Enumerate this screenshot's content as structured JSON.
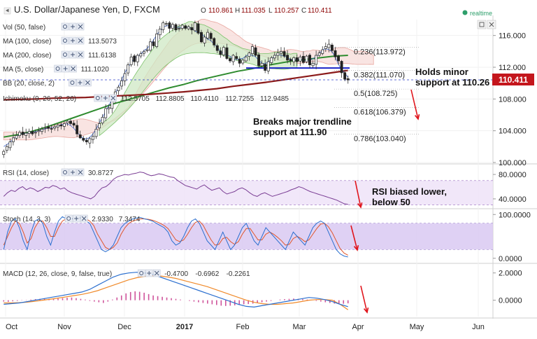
{
  "header": {
    "title": "U.S. Dollar/Japanese Yen, D, FXCM",
    "ohlc": {
      "o_label": "O",
      "o": "110.861",
      "h_label": "H",
      "h": "111.035",
      "l_label": "L",
      "l": "110.257",
      "c_label": "C",
      "c": "110.411"
    },
    "realtime_label": "realtime"
  },
  "indicators": [
    {
      "label": "Vol (50, false)",
      "value": ""
    },
    {
      "label": "MA (100, close)",
      "value": "113.5073"
    },
    {
      "label": "MA (200, close)",
      "value": "111.6138"
    },
    {
      "label": "MA (5, close)",
      "value": "111.1020"
    },
    {
      "label": "BB (20, close, 2)",
      "value": ""
    },
    {
      "label": "Ichimoku (9, 26, 52, 26)",
      "values": [
        "112.5705",
        "112.8805",
        "110.4110",
        "112.7255",
        "112.9485"
      ]
    }
  ],
  "price_badge": "110.411",
  "chart_data": [
    {
      "type": "candlestick",
      "panel": "price",
      "title": "U.S. Dollar/Japanese Yen, D, FXCM",
      "x_ticks": [
        "Oct",
        "Nov",
        "Dec",
        "2017",
        "Feb",
        "Mar",
        "Apr",
        "May",
        "Jun"
      ],
      "y_ticks": [
        "100.000",
        "104.000",
        "108.000",
        "112.000",
        "116.000"
      ],
      "ylim": [
        100,
        118
      ],
      "closes": [
        101.4,
        102.0,
        102.6,
        103.1,
        103.4,
        103.8,
        103.5,
        103.7,
        103.9,
        103.6,
        103.8,
        104.0,
        104.2,
        104.4,
        104.3,
        104.2,
        104.5,
        104.7,
        104.6,
        104.9,
        105.2,
        104.9,
        104.7,
        103.6,
        103.1,
        102.8,
        102.6,
        103.0,
        103.3,
        104.2,
        104.9,
        105.7,
        106.8,
        106.9,
        107.8,
        108.9,
        109.5,
        110.3,
        111.2,
        112.3,
        113.3,
        112.7,
        113.5,
        113.7,
        114.0,
        114.2,
        115.2,
        114.7,
        116.2,
        116.8,
        117.6,
        117.5,
        116.9,
        117.4,
        116.7,
        116.9,
        117.3,
        116.9,
        117.1,
        116.7,
        117.6,
        116.3,
        115.2,
        115.8,
        116.4,
        115.6,
        114.8,
        114.1,
        113.6,
        114.5,
        113.1,
        112.8,
        113.5,
        113.1,
        112.5,
        112.9,
        113.3,
        113.8,
        114.6,
        113.5,
        112.2,
        112.5,
        111.6,
        112.7,
        113.2,
        113.5,
        113.8,
        114.0,
        113.4,
        112.9,
        112.8,
        113.2,
        112.7,
        113.3,
        112.6,
        113.4,
        112.3,
        112.5,
        113.5,
        113.8,
        114.2,
        114.6,
        114.9,
        114.1,
        113.3,
        112.8,
        111.3,
        110.5,
        110.4
      ],
      "ma100": [
        103.2,
        103.5,
        103.9,
        104.4,
        105.0,
        105.6,
        106.2,
        106.8,
        107.4,
        107.9,
        108.4,
        108.9,
        109.4,
        109.8,
        110.3,
        110.7,
        111.1,
        111.5,
        111.8,
        112.2,
        112.5,
        112.8,
        113.0,
        113.2,
        113.4,
        113.5
      ],
      "ma200": [
        107.9,
        107.95,
        108.0,
        108.1,
        108.15,
        108.2,
        108.3,
        108.4,
        108.5,
        108.6,
        108.75,
        108.9,
        109.1,
        109.3,
        109.6,
        109.85,
        110.1,
        110.4,
        110.7,
        111.0,
        111.3,
        111.6
      ],
      "ma200_x_range": [
        "Sep",
        "Mar"
      ],
      "fib_levels": [
        {
          "label": "0.236(113.972)",
          "price": 113.972
        },
        {
          "label": "0.382(111.070)",
          "price": 111.07
        },
        {
          "label": "0.5(108.725)",
          "price": 108.725
        },
        {
          "label": "0.618(106.379)",
          "price": 106.379
        },
        {
          "label": "0.786(103.040)",
          "price": 103.04
        }
      ],
      "trendline": {
        "price": 111.9
      },
      "annotations": [
        {
          "text": [
            "Holds minor",
            "support at 110.26"
          ]
        },
        {
          "text": [
            "Breaks major trendline",
            "support at 111.90"
          ]
        }
      ],
      "current_price": 110.411
    },
    {
      "type": "line",
      "panel": "rsi",
      "legend": "RSI (14, close)",
      "value_label": "30.8727",
      "y_ticks": [
        "40.0000",
        "80.0000"
      ],
      "ylim": [
        25,
        95
      ],
      "bands": [
        30,
        70
      ],
      "values": [
        44,
        50,
        54,
        52,
        57,
        60,
        55,
        58,
        56,
        52,
        55,
        59,
        58,
        62,
        60,
        56,
        58,
        53,
        50,
        48,
        46,
        44,
        42,
        40,
        44,
        52,
        58,
        60,
        65,
        72,
        76,
        78,
        80,
        79,
        81,
        82,
        84,
        83,
        80,
        78,
        79,
        81,
        80,
        78,
        76,
        75,
        70,
        66,
        62,
        60,
        58,
        56,
        60,
        63,
        58,
        54,
        56,
        58,
        52,
        48,
        50,
        52,
        56,
        58,
        55,
        50,
        46,
        44,
        48,
        50,
        47,
        44,
        46,
        48,
        50,
        52,
        55,
        57,
        60,
        58,
        55,
        52,
        50,
        48,
        46,
        44,
        42,
        40,
        38,
        35,
        32,
        31
      ],
      "annotation": [
        "RSI biased lower,",
        "below 50"
      ]
    },
    {
      "type": "line",
      "panel": "stochastic",
      "legend": "Stoch (14, 3, 3)",
      "value_labels": [
        "2.9330",
        "7.3474"
      ],
      "y_ticks": [
        "0.0000",
        "100.0000"
      ],
      "ylim": [
        -10,
        110
      ],
      "bands": [
        20,
        80
      ],
      "k": [
        20,
        60,
        85,
        90,
        70,
        40,
        20,
        60,
        85,
        90,
        80,
        50,
        30,
        60,
        85,
        95,
        90,
        88,
        92,
        95,
        90,
        85,
        80,
        60,
        40,
        20,
        15,
        20,
        30,
        50,
        70,
        80,
        85,
        90,
        92,
        93,
        90,
        88,
        85,
        80,
        75,
        70,
        60,
        40,
        30,
        35,
        50,
        70,
        85,
        90,
        80,
        60,
        40,
        30,
        20,
        40,
        60,
        40,
        20,
        30,
        50,
        70,
        80,
        60,
        40,
        30,
        50,
        70,
        60,
        50,
        40,
        30,
        20,
        40,
        60,
        50,
        40,
        30,
        50,
        70,
        80,
        85,
        80,
        60,
        40,
        20,
        10,
        5,
        3
      ],
      "d": [
        30,
        50,
        70,
        85,
        80,
        60,
        35,
        45,
        70,
        85,
        85,
        70,
        50,
        50,
        70,
        85,
        90,
        90,
        90,
        92,
        92,
        90,
        85,
        75,
        55,
        40,
        25,
        20,
        25,
        35,
        55,
        70,
        80,
        85,
        88,
        90,
        90,
        89,
        87,
        84,
        80,
        75,
        68,
        55,
        42,
        38,
        42,
        55,
        70,
        82,
        85,
        75,
        58,
        42,
        30,
        32,
        45,
        48,
        38,
        32,
        38,
        55,
        68,
        68,
        55,
        42,
        42,
        55,
        60,
        55,
        48,
        40,
        30,
        32,
        45,
        50,
        45,
        38,
        42,
        55,
        68,
        78,
        80,
        72,
        58,
        40,
        22,
        12,
        7
      ]
    },
    {
      "type": "bar",
      "panel": "macd",
      "legend": "MACD (12, 26, close, 9, false, true)",
      "value_labels": [
        "-0.4700",
        "-0.6962",
        "-0.2261"
      ],
      "y_ticks": [
        "0.0000",
        "2.0000"
      ],
      "ylim": [
        -1.2,
        2.6
      ],
      "histogram": [
        -0.1,
        -0.12,
        -0.08,
        -0.05,
        -0.02,
        0.02,
        0.05,
        0.08,
        0.1,
        0.12,
        0.1,
        0.08,
        0.12,
        0.15,
        0.18,
        0.2,
        0.15,
        0.1,
        0.05,
        -0.05,
        -0.1,
        -0.15,
        -0.2,
        -0.1,
        0.05,
        0.2,
        0.35,
        0.5,
        0.6,
        0.65,
        0.62,
        0.55,
        0.45,
        0.35,
        0.3,
        0.25,
        0.2,
        0.15,
        0.1,
        0.05,
        0.0,
        -0.05,
        -0.1,
        -0.15,
        -0.2,
        -0.25,
        -0.3,
        -0.35,
        -0.4,
        -0.42,
        -0.4,
        -0.38,
        -0.35,
        -0.3,
        -0.28,
        -0.25,
        -0.2,
        -0.15,
        -0.1,
        -0.05,
        0.0,
        0.05,
        0.08,
        0.1,
        0.12,
        0.1,
        0.08,
        0.05,
        0.0,
        -0.05,
        -0.1,
        -0.15,
        -0.2,
        -0.25,
        -0.28,
        -0.26,
        -0.23
      ],
      "macd_line": [
        -0.3,
        -0.25,
        -0.2,
        -0.1,
        0.0,
        0.1,
        0.2,
        0.3,
        0.4,
        0.5,
        0.6,
        0.8,
        1.1,
        1.4,
        1.7,
        1.9,
        2.0,
        2.05,
        2.0,
        1.9,
        1.7,
        1.5,
        1.3,
        1.1,
        0.9,
        0.7,
        0.5,
        0.3,
        0.1,
        -0.1,
        -0.3,
        -0.45,
        -0.5,
        -0.4,
        -0.3,
        -0.2,
        -0.1,
        0.0,
        0.1,
        0.2,
        0.15,
        0.05,
        -0.1,
        -0.3,
        -0.47
      ],
      "signal_line": [
        -0.2,
        -0.2,
        -0.18,
        -0.14,
        -0.08,
        0.0,
        0.08,
        0.16,
        0.25,
        0.34,
        0.43,
        0.55,
        0.7,
        0.9,
        1.1,
        1.3,
        1.5,
        1.65,
        1.75,
        1.8,
        1.78,
        1.7,
        1.6,
        1.45,
        1.3,
        1.15,
        1.0,
        0.8,
        0.6,
        0.4,
        0.2,
        0.0,
        -0.15,
        -0.25,
        -0.3,
        -0.3,
        -0.25,
        -0.2,
        -0.1,
        0.0,
        0.05,
        0.05,
        0.0,
        -0.3,
        -0.7
      ]
    }
  ]
}
